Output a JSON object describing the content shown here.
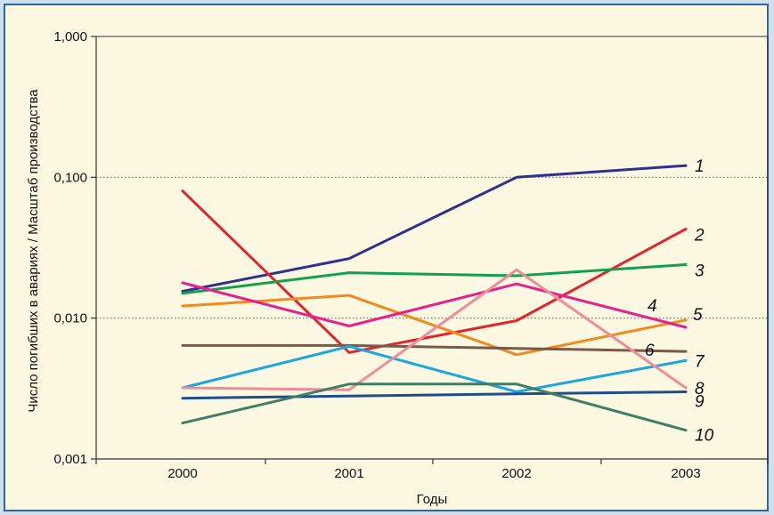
{
  "chart_data": {
    "type": "line",
    "xlabel": "Годы",
    "ylabel": "Число погибших в авариях / Масштаб производства",
    "y_scale": "log",
    "ylim": [
      0.001,
      1.0
    ],
    "y_ticks": [
      {
        "value": 0.001,
        "label": "0,001"
      },
      {
        "value": 0.01,
        "label": "0,010"
      },
      {
        "value": 0.1,
        "label": "0,100"
      },
      {
        "value": 1.0,
        "label": "1,000"
      }
    ],
    "categories": [
      "2000",
      "2001",
      "2002",
      "2003"
    ],
    "grid": "horizontal dotted at 0,010 and 0,100",
    "series": [
      {
        "name": "1",
        "color": "#2e3092",
        "values": [
          0.0155,
          0.0265,
          0.1,
          0.121
        ]
      },
      {
        "name": "2",
        "color": "#e0262c",
        "values": [
          0.08,
          0.0057,
          0.0096,
          0.043
        ]
      },
      {
        "name": "3",
        "color": "#11a14d",
        "values": [
          0.015,
          0.021,
          0.02,
          0.024
        ]
      },
      {
        "name": "4",
        "color": "#f28a1e",
        "values": [
          0.0122,
          0.0145,
          0.0055,
          0.0097
        ]
      },
      {
        "name": "5",
        "color": "#e4218e",
        "values": [
          0.0178,
          0.0088,
          0.0175,
          0.0086
        ]
      },
      {
        "name": "6",
        "color": "#7a5a4a",
        "values": [
          0.0064,
          0.0064,
          0.0061,
          0.0058
        ]
      },
      {
        "name": "7",
        "color": "#1ba5e2",
        "values": [
          0.0032,
          0.0063,
          0.003,
          0.005
        ]
      },
      {
        "name": "8",
        "color": "#f08c98",
        "values": [
          0.0032,
          0.0031,
          0.022,
          0.0032
        ]
      },
      {
        "name": "9",
        "color": "#1f4e8c",
        "values": [
          0.0027,
          0.0028,
          0.0029,
          0.003
        ]
      },
      {
        "name": "10",
        "color": "#3f7f64",
        "values": [
          0.0018,
          0.0034,
          0.0034,
          0.0016
        ]
      }
    ]
  }
}
